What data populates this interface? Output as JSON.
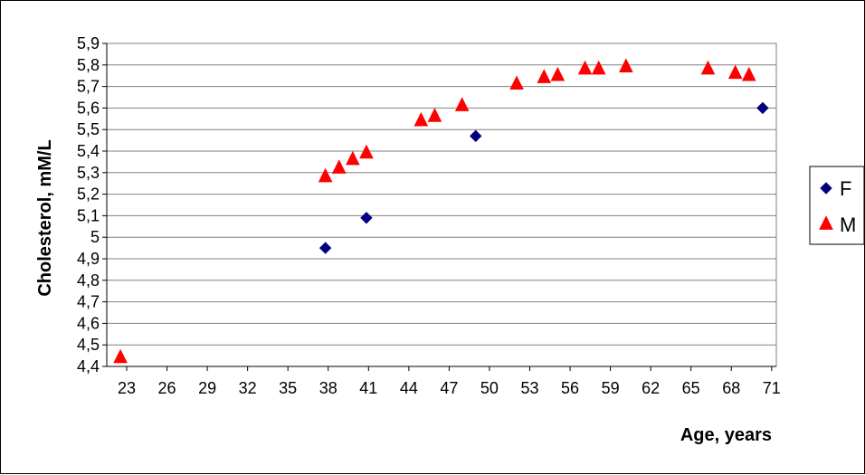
{
  "chart_data": {
    "type": "scatter",
    "xlabel": "Age, years",
    "ylabel": "Cholesterol, mM/L",
    "x_ticks": [
      "23",
      "26",
      "29",
      "32",
      "35",
      "38",
      "41",
      "44",
      "47",
      "50",
      "53",
      "56",
      "59",
      "62",
      "65",
      "68",
      "71"
    ],
    "y_ticks": [
      "4,4",
      "4,5",
      "4,6",
      "4,7",
      "4,8",
      "4,9",
      "5",
      "5,1",
      "5,2",
      "5,3",
      "5,4",
      "5,5",
      "5,6",
      "5,7",
      "5,8",
      "5,9"
    ],
    "xlim": [
      23,
      72
    ],
    "ylim": [
      4.4,
      5.9
    ],
    "grid": "horizontal",
    "legend_position": "right",
    "series": [
      {
        "name": "F",
        "marker": "diamond",
        "color": "#000080",
        "points": [
          {
            "x": 39,
            "y": 4.95
          },
          {
            "x": 42,
            "y": 5.09
          },
          {
            "x": 50,
            "y": 5.47
          },
          {
            "x": 71,
            "y": 5.6
          }
        ]
      },
      {
        "name": "M",
        "marker": "triangle",
        "color": "#ff0000",
        "points": [
          {
            "x": 24,
            "y": 4.44
          },
          {
            "x": 39,
            "y": 5.28
          },
          {
            "x": 40,
            "y": 5.32
          },
          {
            "x": 41,
            "y": 5.36
          },
          {
            "x": 42,
            "y": 5.39
          },
          {
            "x": 46,
            "y": 5.54
          },
          {
            "x": 47,
            "y": 5.56
          },
          {
            "x": 49,
            "y": 5.61
          },
          {
            "x": 53,
            "y": 5.71
          },
          {
            "x": 55,
            "y": 5.74
          },
          {
            "x": 56,
            "y": 5.75
          },
          {
            "x": 58,
            "y": 5.78
          },
          {
            "x": 59,
            "y": 5.78
          },
          {
            "x": 61,
            "y": 5.79
          },
          {
            "x": 67,
            "y": 5.78
          },
          {
            "x": 69,
            "y": 5.76
          },
          {
            "x": 70,
            "y": 5.75
          }
        ]
      }
    ]
  }
}
